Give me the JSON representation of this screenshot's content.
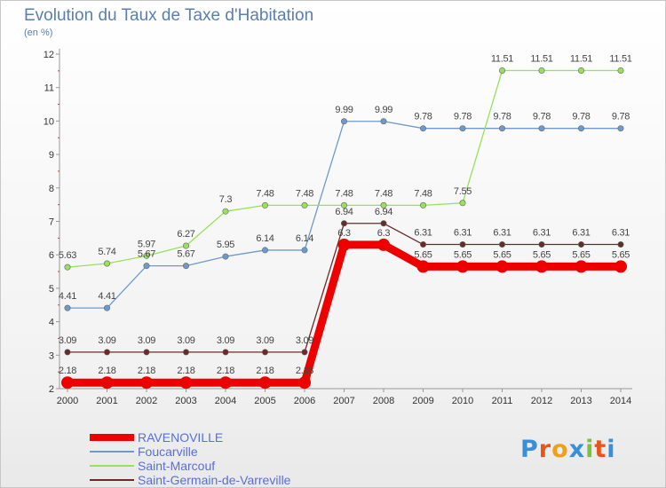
{
  "title": "Evolution du Taux de Taxe d'Habitation",
  "subtitle": "(en %)",
  "logo_text": "Proxiti",
  "chart_data": {
    "type": "line",
    "x": [
      "2000",
      "2001",
      "2002",
      "2003",
      "2004",
      "2005",
      "2006",
      "2007",
      "2008",
      "2009",
      "2010",
      "2011",
      "2012",
      "2013",
      "2014"
    ],
    "ylim": [
      2,
      12
    ],
    "yticks": [
      "2",
      "3",
      "4",
      "5",
      "6",
      "7",
      "8",
      "9",
      "10",
      "11",
      "12"
    ],
    "grid": false,
    "legend_position": "bottom-left",
    "series": [
      {
        "name": "RAVENOVILLE",
        "color": "#ee0000",
        "values": [
          2.18,
          2.18,
          2.18,
          2.18,
          2.18,
          2.18,
          2.18,
          6.3,
          6.3,
          5.65,
          5.65,
          5.65,
          5.65,
          5.65,
          5.65
        ],
        "labels": [
          "2.18",
          "2.18",
          "2.18",
          "2.18",
          "2.18",
          "2.18",
          "2.18",
          "6.3",
          "6.3",
          "5.65",
          "5.65",
          "5.65",
          "5.65",
          "5.65",
          "5.65"
        ]
      },
      {
        "name": "Foucarville",
        "color": "#6e9acb",
        "values": [
          4.41,
          4.41,
          5.67,
          5.67,
          5.95,
          6.14,
          6.14,
          9.99,
          9.99,
          9.78,
          9.78,
          9.78,
          9.78,
          9.78,
          9.78
        ],
        "labels": [
          "4.41",
          "4.41",
          "5.67",
          "5.67",
          "5.95",
          "6.14",
          "6.14",
          "9.99",
          "9.99",
          "9.78",
          "9.78",
          "9.78",
          "9.78",
          "9.78",
          "9.78"
        ]
      },
      {
        "name": "Saint-Marcouf",
        "color": "#99e05c",
        "values": [
          5.63,
          5.74,
          5.97,
          6.27,
          7.3,
          7.48,
          7.48,
          7.48,
          7.48,
          7.48,
          7.55,
          11.51,
          11.51,
          11.51,
          11.51
        ],
        "labels": [
          "5.63",
          "5.74",
          "5.97",
          "6.27",
          "7.3",
          "7.48",
          "7.48",
          "7.48",
          "7.48",
          "7.48",
          "7.55",
          "11.51",
          "11.51",
          "11.51",
          "11.51"
        ]
      },
      {
        "name": "Saint-Germain-de-Varreville",
        "color": "#6b2a2a",
        "values": [
          3.09,
          3.09,
          3.09,
          3.09,
          3.09,
          3.09,
          3.09,
          6.94,
          6.94,
          6.31,
          6.31,
          6.31,
          6.31,
          6.31,
          6.31
        ],
        "labels": [
          "3.09",
          "3.09",
          "3.09",
          "3.09",
          "3.09",
          "3.09",
          "3.09",
          "6.94",
          "6.94",
          "6.31",
          "6.31",
          "6.31",
          "6.31",
          "6.31",
          "6.31"
        ]
      }
    ]
  }
}
